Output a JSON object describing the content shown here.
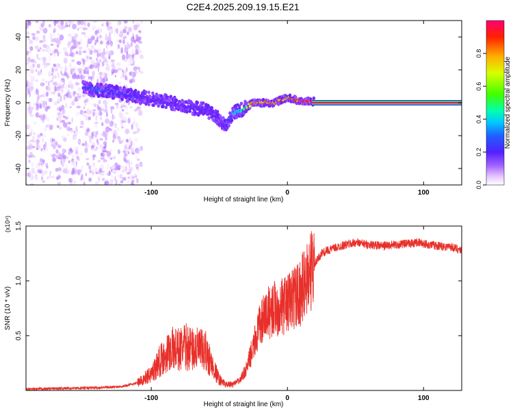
{
  "page_title": "C2E4.2025.209.19.15.E21",
  "chart_data": [
    {
      "type": "heatmap",
      "xlabel": "Height of straight line (km)",
      "ylabel": "Frequency (Hz)",
      "xlim": [
        -192,
        128
      ],
      "ylim": [
        -50,
        50
      ],
      "xticks": [
        -100,
        0,
        100
      ],
      "xtick_labels": [
        "-100",
        "0",
        "100"
      ],
      "yticks": [
        -40,
        -20,
        0,
        20,
        40
      ],
      "ytick_labels": [
        "-40",
        "-20",
        "0",
        "20",
        "40"
      ],
      "colorbar": {
        "label": "Normalized spectral amplitude",
        "range": [
          0,
          1
        ],
        "ticks": [
          0,
          0.2,
          0.4,
          0.6,
          0.8
        ],
        "tick_labels": [
          "0.0",
          "0.2",
          "0.4",
          "0.6",
          "0.8"
        ],
        "colormap": [
          "#ffffff",
          "#e8c8ff",
          "#b070ff",
          "#7020ff",
          "#3040ff",
          "#00c0ff",
          "#00ffb0",
          "#40ff00",
          "#d0ff00",
          "#ffc000",
          "#ff3000",
          "#ff0060"
        ]
      },
      "ridge": [
        {
          "x": -150,
          "y": 9,
          "amp": 0.35
        },
        {
          "x": -140,
          "y": 8,
          "amp": 0.4
        },
        {
          "x": -130,
          "y": 7,
          "amp": 0.35
        },
        {
          "x": -120,
          "y": 5,
          "amp": 0.35
        },
        {
          "x": -110,
          "y": 4,
          "amp": 0.3
        },
        {
          "x": -100,
          "y": 2,
          "amp": 0.3
        },
        {
          "x": -90,
          "y": 1,
          "amp": 0.3
        },
        {
          "x": -80,
          "y": -1,
          "amp": 0.3
        },
        {
          "x": -70,
          "y": -3,
          "amp": 0.3
        },
        {
          "x": -60,
          "y": -4,
          "amp": 0.3
        },
        {
          "x": -50,
          "y": -10,
          "amp": 0.3
        },
        {
          "x": -45,
          "y": -14,
          "amp": 0.3
        },
        {
          "x": -40,
          "y": -6,
          "amp": 0.45
        },
        {
          "x": -35,
          "y": -5,
          "amp": 0.5
        },
        {
          "x": -25,
          "y": 0,
          "amp": 0.85
        },
        {
          "x": -10,
          "y": 0,
          "amp": 0.9
        },
        {
          "x": 0,
          "y": 3,
          "amp": 0.85
        },
        {
          "x": 10,
          "y": 1,
          "amp": 0.9
        },
        {
          "x": 50,
          "y": 0,
          "amp": 1.0
        },
        {
          "x": 128,
          "y": 0,
          "amp": 1.0
        }
      ]
    },
    {
      "type": "line",
      "xlabel": "Height of straight line (km)",
      "ylabel": "SNR (10 * v/v)",
      "y_multiplier": "(x10⁴)",
      "xlim": [
        -192,
        128
      ],
      "ylim": [
        0,
        15000
      ],
      "xticks": [
        -100,
        0,
        100
      ],
      "xtick_labels": [
        "-100",
        "0",
        "100"
      ],
      "yticks": [
        5000,
        10000,
        15000
      ],
      "ytick_labels": [
        "0.5",
        "1.0",
        "1.5"
      ],
      "color": "#e8302a",
      "series": [
        {
          "x": [
            -192,
            -180,
            -160,
            -140,
            -130,
            -120,
            -110,
            -100,
            -95,
            -90,
            -85,
            -80,
            -75,
            -70,
            -65,
            -60,
            -55,
            -50,
            -45,
            -40,
            -35,
            -30,
            -25,
            -20,
            -15,
            -10,
            -5,
            0,
            5,
            10,
            15,
            20,
            25,
            30,
            40,
            50,
            60,
            70,
            80,
            90,
            95,
            100,
            105,
            110,
            120,
            128
          ],
          "y": [
            100,
            150,
            200,
            250,
            300,
            400,
            700,
            1500,
            2500,
            3200,
            3800,
            3700,
            4000,
            3800,
            3700,
            3500,
            2200,
            1000,
            500,
            600,
            900,
            2000,
            4000,
            6000,
            7000,
            7500,
            7500,
            8000,
            8500,
            9000,
            10500,
            11500,
            12500,
            12800,
            13200,
            13500,
            13300,
            13200,
            13300,
            13400,
            13500,
            13400,
            13300,
            13200,
            13100,
            12800
          ]
        }
      ]
    }
  ]
}
